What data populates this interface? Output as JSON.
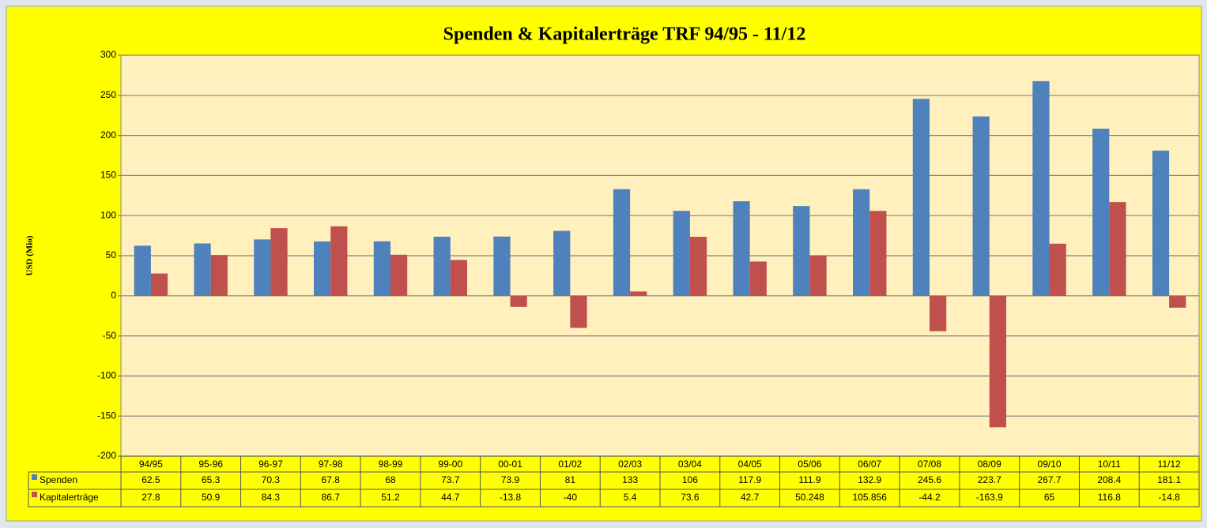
{
  "chart_data": {
    "type": "bar",
    "title": "Spenden & Kapitalerträge TRF 94/95 - 11/12",
    "y_label": "USD (Mio)",
    "categories": [
      "94/95",
      "95-96",
      "96-97",
      "97-98",
      "98-99",
      "99-00",
      "00-01",
      "01/02",
      "02/03",
      "03/04",
      "04/05",
      "05/06",
      "06/07",
      "07/08",
      "08/09",
      "09/10",
      "10/11",
      "11/12"
    ],
    "series": [
      {
        "name": "Spenden",
        "color": "#4f81bd",
        "values": [
          62.5,
          65.3,
          70.3,
          67.8,
          68,
          73.7,
          73.9,
          81,
          133,
          106,
          117.9,
          111.9,
          132.9,
          245.6,
          223.7,
          267.7,
          208.4,
          181.1
        ]
      },
      {
        "name": "Kapitalerträge",
        "color": "#c0504d",
        "values": [
          27.8,
          50.9,
          84.3,
          86.7,
          51.2,
          44.7,
          -13.8,
          -40,
          5.4,
          73.6,
          42.7,
          50.248,
          105.856,
          -44.2,
          -163.9,
          65,
          116.8,
          -14.8
        ]
      }
    ],
    "ylim": [
      -200,
      300
    ],
    "yticks": [
      -200,
      -150,
      -100,
      -50,
      0,
      50,
      100,
      150,
      200,
      250,
      300
    ],
    "grid": true
  }
}
